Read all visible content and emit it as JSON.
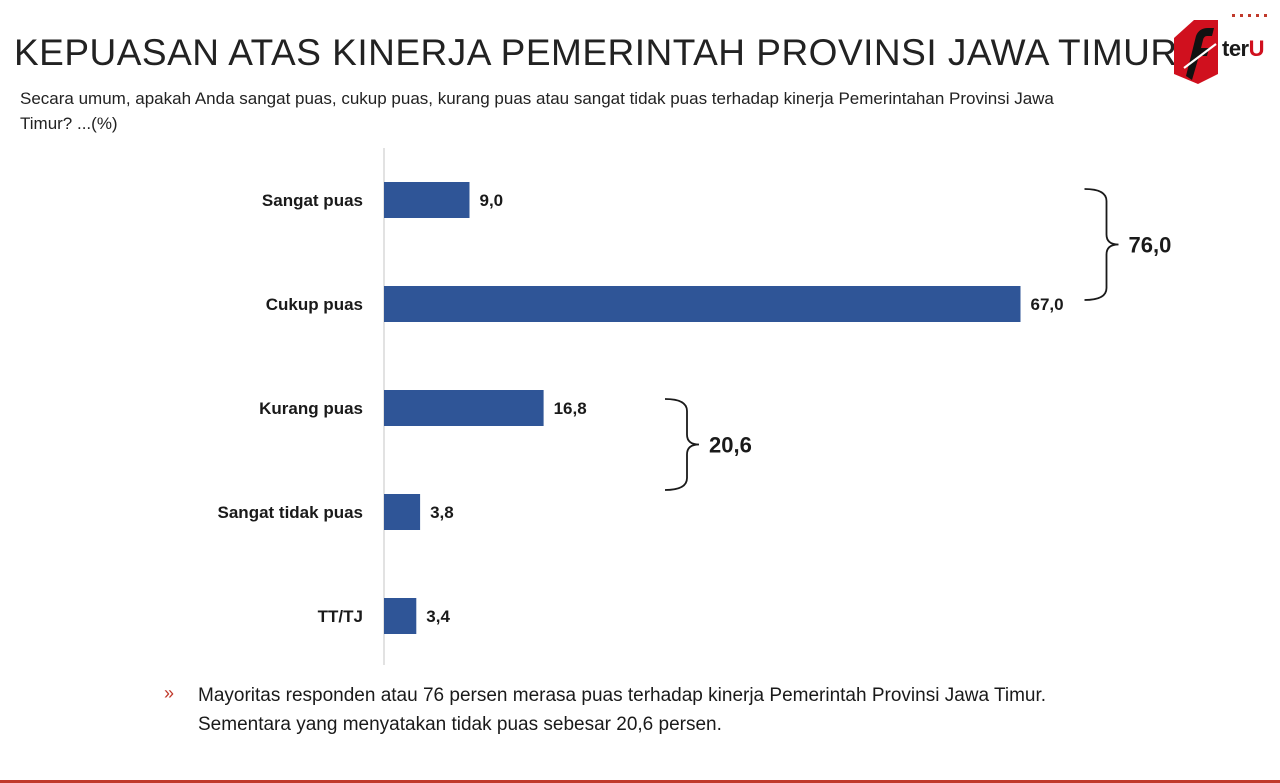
{
  "header": {
    "title": "KEPUASAN ATAS KINERJA PEMERINTAH PROVINSI JAWA TIMUR",
    "subtitle": "Secara umum, apakah Anda sangat puas, cukup puas, kurang puas atau sangat tidak puas terhadap kinerja Pemerintahan Provinsi Jawa Timur? ...(%)"
  },
  "logo": {
    "text_main": "ter",
    "text_accent": "U",
    "icon": "logo-f-mark-icon"
  },
  "chart_data": {
    "type": "bar",
    "orientation": "horizontal",
    "categories": [
      "Sangat puas",
      "Cukup puas",
      "Kurang puas",
      "Sangat tidak puas",
      "TT/TJ"
    ],
    "values": [
      9.0,
      67.0,
      16.8,
      3.8,
      3.4
    ],
    "value_labels": [
      "9,0",
      "67,0",
      "16,8",
      "3,8",
      "3,4"
    ],
    "xlim": [
      0,
      100
    ],
    "bar_color": "#2f5597",
    "grid": false,
    "annotations": [
      {
        "label": "76,0",
        "groups": [
          "Sangat puas",
          "Cukup puas"
        ]
      },
      {
        "label": "20,6",
        "groups": [
          "Kurang puas",
          "Sangat tidak puas"
        ]
      }
    ]
  },
  "note": {
    "bullet": "»",
    "text_line1": "Mayoritas responden atau 76 persen merasa puas terhadap kinerja Pemerintah Provinsi Jawa Timur.",
    "text_line2": "Sementara yang menyatakan tidak puas sebesar 20,6 persen."
  },
  "colors": {
    "accent": "#c0392b",
    "bar": "#2f5597"
  }
}
